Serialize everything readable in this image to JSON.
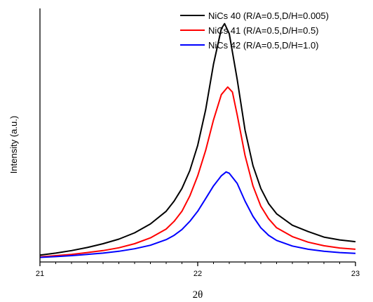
{
  "chart_data": {
    "type": "line",
    "title": "",
    "xlabel": "2θ",
    "ylabel": "Intensity (a.u.)",
    "xlim": [
      21,
      23
    ],
    "ylim": [
      0,
      1.0
    ],
    "x_ticks": [
      "21",
      "22",
      "23"
    ],
    "y_ticks_shown": false,
    "grid": false,
    "legend_position": "top-right",
    "series": [
      {
        "name": "NiCs 40 (R/A=0.5,D/H=0.005)",
        "color": "#000000",
        "x": [
          21.0,
          21.1,
          21.2,
          21.3,
          21.4,
          21.5,
          21.6,
          21.7,
          21.8,
          21.85,
          21.9,
          21.95,
          22.0,
          22.05,
          22.1,
          22.15,
          22.17,
          22.2,
          22.25,
          22.3,
          22.35,
          22.4,
          22.45,
          22.5,
          22.6,
          22.7,
          22.8,
          22.9,
          23.0
        ],
        "y": [
          0.027,
          0.035,
          0.045,
          0.057,
          0.072,
          0.09,
          0.115,
          0.15,
          0.2,
          0.24,
          0.29,
          0.36,
          0.46,
          0.6,
          0.78,
          0.92,
          0.94,
          0.9,
          0.72,
          0.52,
          0.38,
          0.29,
          0.23,
          0.19,
          0.145,
          0.12,
          0.098,
          0.087,
          0.08
        ]
      },
      {
        "name": "NiCs 41 (R/A=0.5,D/H=0.5)",
        "color": "#ff0000",
        "x": [
          21.0,
          21.1,
          21.2,
          21.3,
          21.4,
          21.5,
          21.6,
          21.7,
          21.8,
          21.85,
          21.9,
          21.95,
          22.0,
          22.05,
          22.1,
          22.15,
          22.19,
          22.22,
          22.25,
          22.3,
          22.35,
          22.4,
          22.45,
          22.5,
          22.6,
          22.7,
          22.8,
          22.9,
          23.0
        ],
        "y": [
          0.02,
          0.025,
          0.03,
          0.037,
          0.045,
          0.056,
          0.072,
          0.095,
          0.13,
          0.16,
          0.2,
          0.26,
          0.34,
          0.44,
          0.56,
          0.66,
          0.69,
          0.67,
          0.58,
          0.42,
          0.3,
          0.22,
          0.17,
          0.135,
          0.1,
          0.078,
          0.064,
          0.055,
          0.05
        ]
      },
      {
        "name": "NiCs 42 (R/A=0.5,D/H=1.0)",
        "color": "#0000ff",
        "x": [
          21.0,
          21.1,
          21.2,
          21.3,
          21.4,
          21.5,
          21.6,
          21.7,
          21.8,
          21.85,
          21.9,
          21.95,
          22.0,
          22.05,
          22.1,
          22.15,
          22.18,
          22.2,
          22.25,
          22.3,
          22.35,
          22.4,
          22.45,
          22.5,
          22.6,
          22.7,
          22.8,
          22.9,
          23.0
        ],
        "y": [
          0.018,
          0.021,
          0.025,
          0.03,
          0.035,
          0.042,
          0.052,
          0.066,
          0.088,
          0.105,
          0.128,
          0.16,
          0.2,
          0.25,
          0.3,
          0.34,
          0.355,
          0.35,
          0.31,
          0.24,
          0.18,
          0.135,
          0.105,
          0.085,
          0.063,
          0.05,
          0.042,
          0.037,
          0.034
        ]
      }
    ]
  }
}
